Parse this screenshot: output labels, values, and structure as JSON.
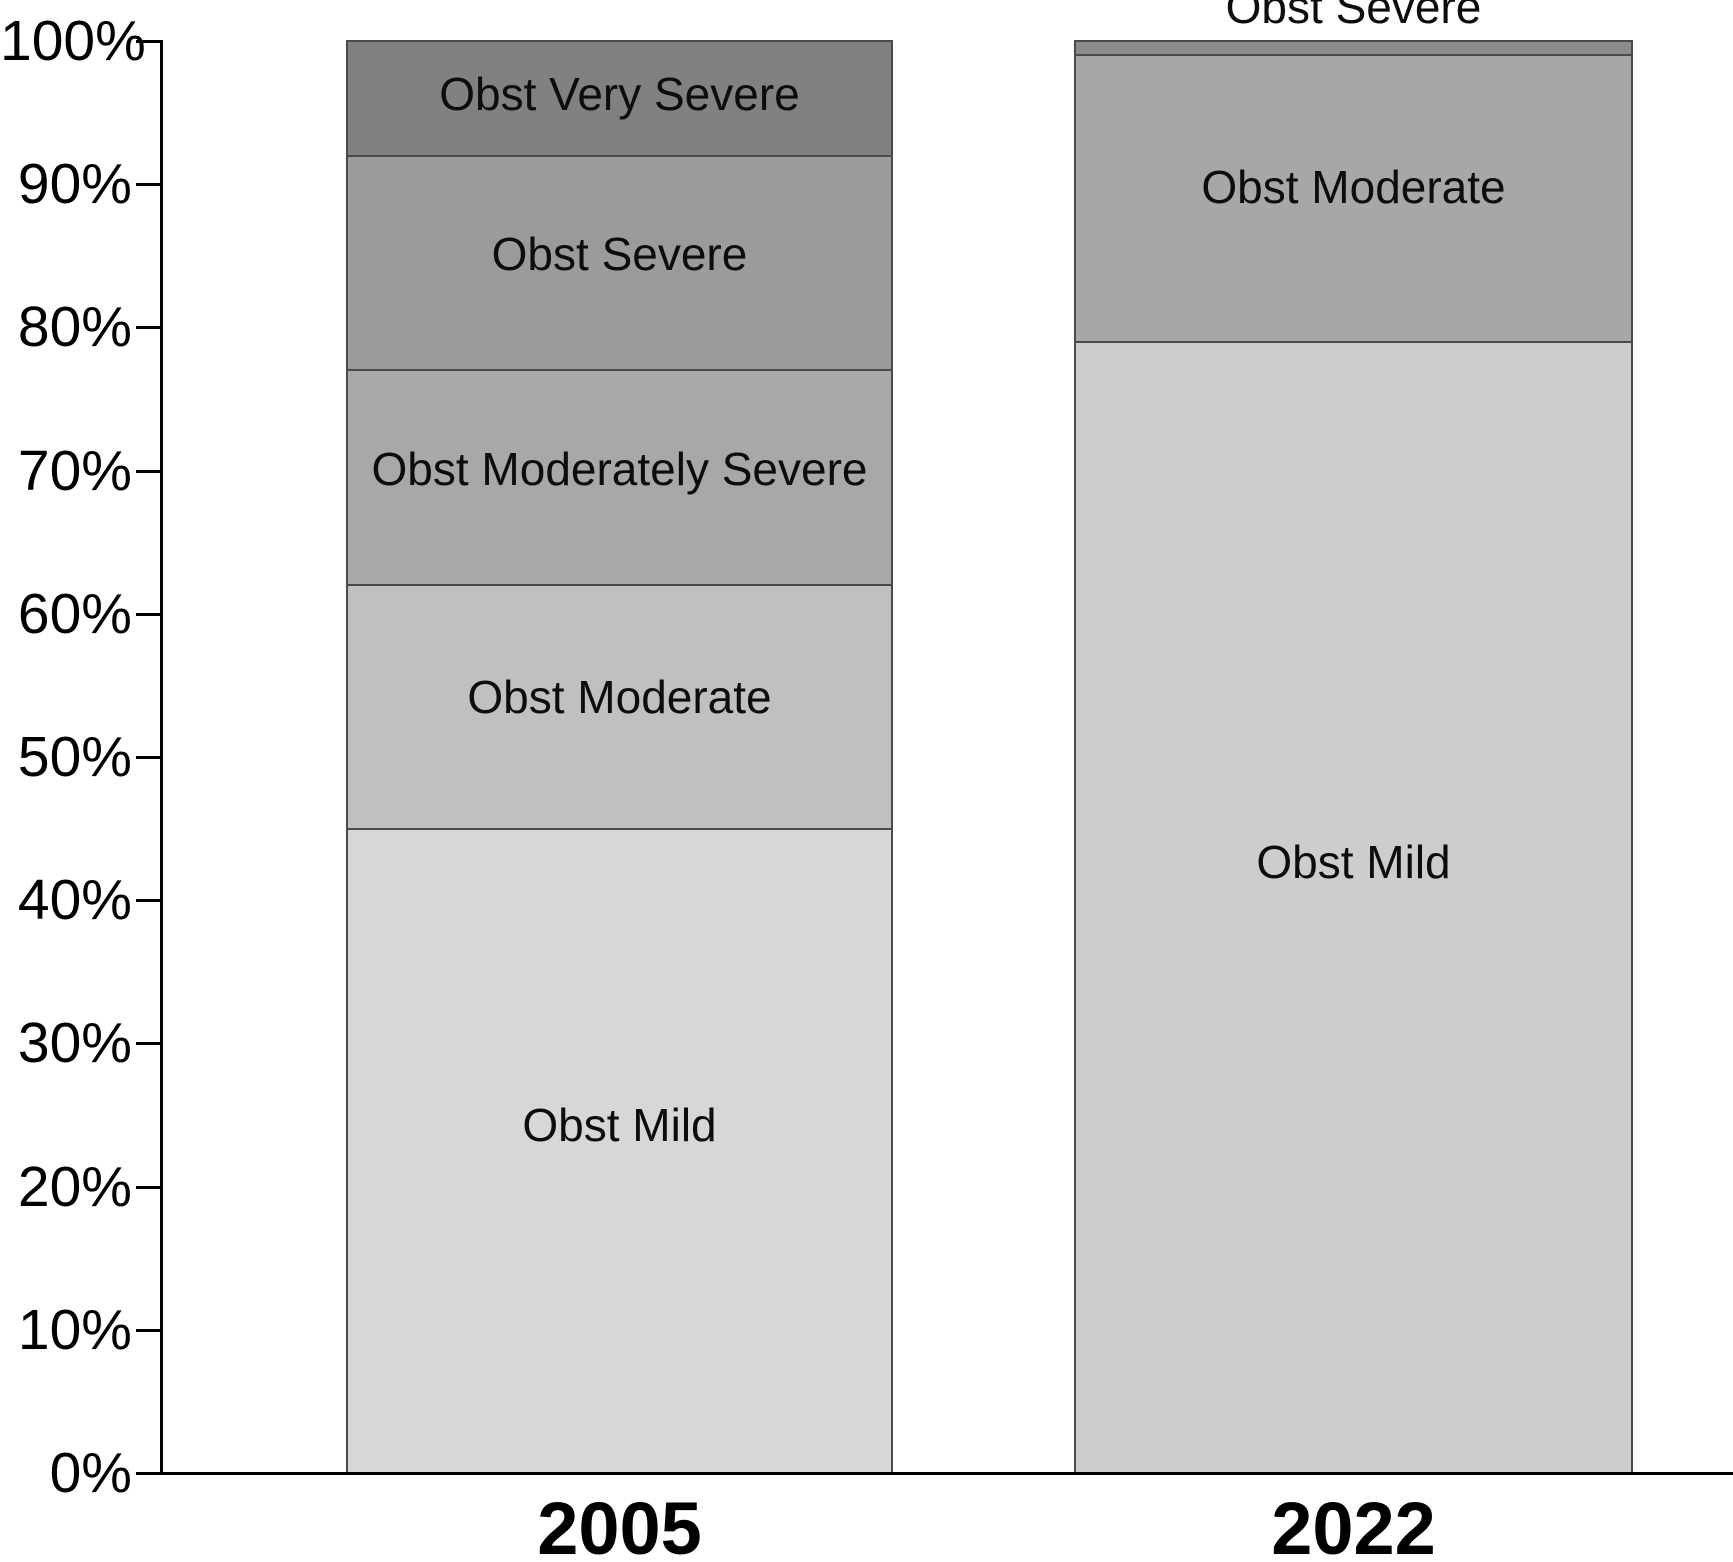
{
  "chart_data": {
    "type": "bar",
    "variant": "stacked-100-percent",
    "title": "",
    "xlabel": "",
    "ylabel": "",
    "categories": [
      "2005",
      "2022"
    ],
    "series": [
      {
        "name": "Obst Mild",
        "values": [
          45,
          79
        ]
      },
      {
        "name": "Obst Moderate",
        "values": [
          17,
          20
        ]
      },
      {
        "name": "Obst Moderately Severe",
        "values": [
          15,
          0
        ]
      },
      {
        "name": "Obst Severe",
        "values": [
          15,
          1
        ]
      },
      {
        "name": "Obst Very Severe",
        "values": [
          8,
          0
        ]
      }
    ],
    "ylim": [
      0,
      100
    ],
    "y_tick_labels": [
      "0%",
      "10%",
      "20%",
      "30%",
      "40%",
      "50%",
      "60%",
      "70%",
      "80%",
      "90%",
      "100%"
    ],
    "grid": false,
    "legend_position": "none",
    "styles": {
      "axis_color": "#000000",
      "segment_outline_color": "#4a4a4a",
      "label_text_color": "#0d0d0d"
    },
    "bars": [
      {
        "label": "2005",
        "segments": [
          {
            "name": "Obst Mild",
            "value": 45,
            "color": "#d7d7d7",
            "label_position": "inside"
          },
          {
            "name": "Obst Moderate",
            "value": 17,
            "color": "#c0c0c0",
            "label_position": "inside"
          },
          {
            "name": "Obst Moderately Severe",
            "value": 15,
            "color": "#a8a8a8",
            "label_position": "inside"
          },
          {
            "name": "Obst Severe",
            "value": 15,
            "color": "#9b9b9b",
            "label_position": "inside"
          },
          {
            "name": "Obst Very Severe",
            "value": 8,
            "color": "#818181",
            "label_position": "inside"
          }
        ]
      },
      {
        "label": "2022",
        "segments": [
          {
            "name": "Obst Mild",
            "value": 79,
            "color": "#cdcdcd",
            "label_position": "inside"
          },
          {
            "name": "Obst Moderate",
            "value": 20,
            "color": "#a7a7a7",
            "label_position": "inside"
          },
          {
            "name": "Obst Severe",
            "value": 1,
            "color": "#8b8b8b",
            "label_position": "above"
          }
        ]
      }
    ]
  }
}
